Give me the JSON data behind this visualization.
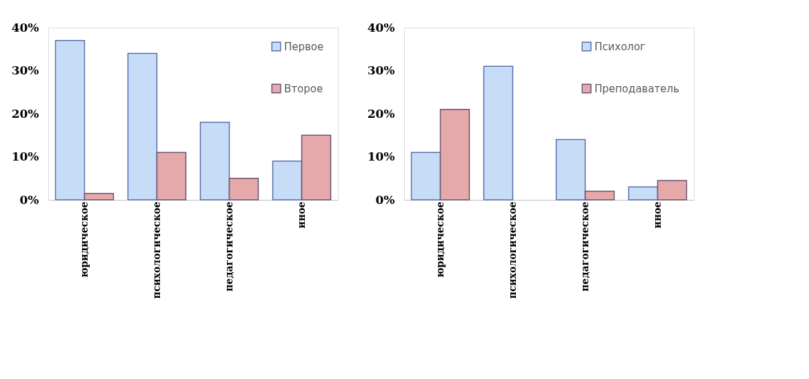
{
  "chart_data": [
    {
      "type": "bar",
      "categories": [
        "юридическое",
        "психологическое",
        "педагогическое",
        "иное"
      ],
      "series": [
        {
          "name": "Первое",
          "color": "#c6dcf7",
          "values": [
            37,
            34,
            18,
            9
          ]
        },
        {
          "name": "Второе",
          "color": "#e6a9a9",
          "values": [
            1.5,
            11,
            5,
            15
          ]
        }
      ],
      "ylim": [
        0,
        40
      ],
      "yticks": [
        {
          "value": 0,
          "label": "0%"
        },
        {
          "value": 10,
          "label": "10%"
        },
        {
          "value": 20,
          "label": "20%"
        },
        {
          "value": 30,
          "label": "30%"
        },
        {
          "value": 40,
          "label": "40%"
        }
      ],
      "grid": false,
      "legend": "top right"
    },
    {
      "type": "bar",
      "categories": [
        "юридическое",
        "психологическое",
        "педагогическое",
        "иное"
      ],
      "series": [
        {
          "name": "Психолог",
          "color": "#c6dcf7",
          "values": [
            11,
            31,
            14,
            3
          ]
        },
        {
          "name": "Преподаватель",
          "color": "#e6a9a9",
          "values": [
            21,
            null,
            2,
            4.5
          ]
        }
      ],
      "ylim": [
        0,
        40
      ],
      "yticks": [
        {
          "value": 0,
          "label": "0%"
        },
        {
          "value": 10,
          "label": "10%"
        },
        {
          "value": 20,
          "label": "20%"
        },
        {
          "value": 30,
          "label": "30%"
        },
        {
          "value": 40,
          "label": "40%"
        }
      ],
      "grid": false,
      "legend": "top right"
    }
  ]
}
